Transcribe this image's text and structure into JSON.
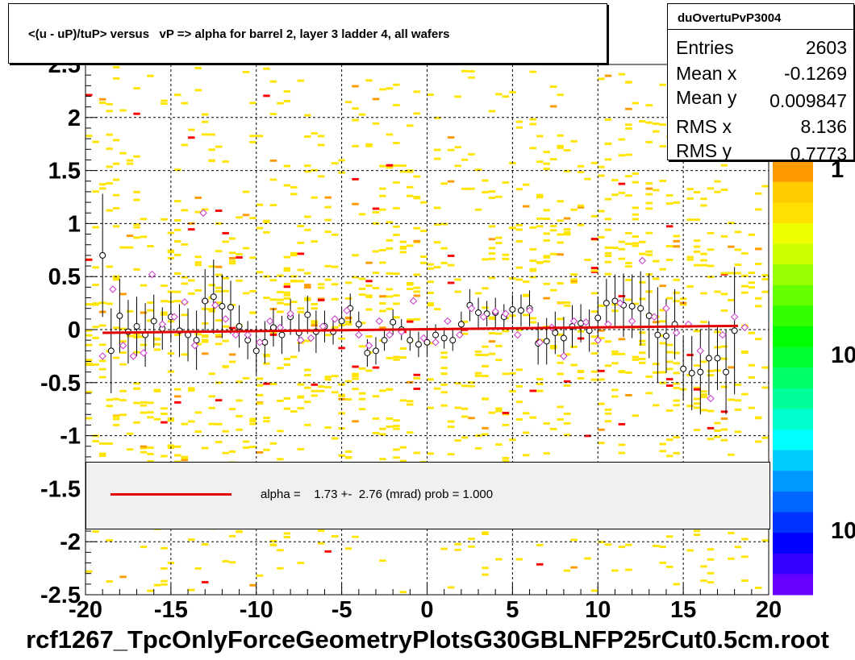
{
  "title": "<(u - uP)/tuP> versus   vP => alpha for barrel 2, layer 3 ladder 4, all wafers",
  "stats": {
    "name": "duOvertuPvP3004",
    "rows": [
      {
        "label": "Entries",
        "value": "2603"
      },
      {
        "label": "Mean x",
        "value": "-0.1269"
      },
      {
        "label": "Mean y",
        "value": "0.009847"
      },
      {
        "label": "RMS x",
        "value": "8.136"
      },
      {
        "label": "RMS y",
        "value": "0.7773"
      }
    ]
  },
  "legend": {
    "text": "alpha =    1.73 +-  2.76 (mrad) prob = 1.000",
    "color": "#e00000"
  },
  "footer": "rcf1267_TpcOnlyForceGeometryPlotsG30GBLNFP25rCut0.5cm.root",
  "colors": {
    "fit": "#e00000",
    "profile": "#000000",
    "marker_alt": "#cc33cc",
    "hist_low": "#ffe400",
    "hist_high": "#ff0000"
  },
  "colorbar": {
    "labels": [
      "1",
      "10",
      "10"
    ],
    "palette": [
      "#ff9900",
      "#ffcc00",
      "#ffe000",
      "#f0ff00",
      "#ccff00",
      "#99ff00",
      "#66ff00",
      "#33ff00",
      "#00ff00",
      "#00ff33",
      "#00ff66",
      "#00ff99",
      "#00ffcc",
      "#00ffff",
      "#00ccff",
      "#0099ff",
      "#0066ff",
      "#0033ff",
      "#0000ff",
      "#3300ff",
      "#6600ff"
    ]
  },
  "chart_data": {
    "type": "scatter",
    "title": "<(u - uP)/tuP> versus   vP => alpha for barrel 2, layer 3 ladder 4, all wafers",
    "xlim": [
      -20,
      20
    ],
    "ylim": [
      -2.5,
      2.5
    ],
    "x_ticks": [
      -20,
      -15,
      -10,
      -5,
      0,
      5,
      10,
      15,
      20
    ],
    "y_ticks": [
      -2.5,
      -2,
      -1.5,
      -1,
      -0.5,
      0,
      0.5,
      1,
      1.5,
      2,
      2.5
    ],
    "x_tick_labels": [
      "-20",
      "-15",
      "-10",
      "-5",
      "0",
      "5",
      "10",
      "15",
      "20"
    ],
    "y_tick_labels": [
      "-2.5",
      "-2",
      "-1.5",
      "-1",
      "-0.5",
      "0",
      "0.5",
      "1",
      "1.5",
      "2",
      "2.5"
    ],
    "grid": true,
    "fit": {
      "x": [
        -19,
        18.2
      ],
      "y": [
        -0.03,
        0.035
      ]
    },
    "profile_series": {
      "x": [
        -19,
        -18.5,
        -18,
        -17.5,
        -17,
        -16.5,
        -16,
        -15.5,
        -15,
        -14.5,
        -14,
        -13.5,
        -13,
        -12.5,
        -12,
        -11.5,
        -11,
        -10.5,
        -10,
        -9.5,
        -9,
        -8.5,
        -8,
        -7.5,
        -7,
        -6.5,
        -6,
        -5.5,
        -5,
        -4.5,
        -4,
        -3.5,
        -3,
        -2.5,
        -2,
        -1.5,
        -1,
        -0.5,
        0,
        0.5,
        1,
        1.5,
        2,
        2.5,
        3,
        3.5,
        4,
        4.5,
        5,
        5.5,
        6,
        6.5,
        7,
        7.5,
        8,
        8.5,
        9,
        9.5,
        10,
        10.5,
        11,
        11.5,
        12,
        12.5,
        13,
        13.5,
        14,
        14.5,
        15,
        15.5,
        16,
        16.5,
        17,
        17.5,
        18
      ],
      "y": [
        0.7,
        -0.2,
        0.13,
        -0.02,
        0.03,
        -0.05,
        0.08,
        0.01,
        0.12,
        -0.01,
        -0.05,
        -0.1,
        0.27,
        0.31,
        0.22,
        0.21,
        0.03,
        -0.1,
        -0.2,
        -0.12,
        0.02,
        -0.05,
        0.12,
        -0.03,
        0.14,
        -0.02,
        0.03,
        -0.02,
        0.08,
        0.2,
        0.05,
        -0.22,
        -0.2,
        -0.1,
        0.07,
        0.0,
        -0.1,
        -0.14,
        -0.12,
        -0.05,
        -0.08,
        -0.1,
        0.05,
        0.23,
        0.16,
        0.15,
        0.16,
        0.12,
        0.19,
        0.18,
        0.2,
        -0.13,
        -0.11,
        -0.03,
        -0.08,
        0.03,
        0.06,
        -0.01,
        0.11,
        0.25,
        0.27,
        0.23,
        0.22,
        0.2,
        0.13,
        -0.05,
        -0.06,
        0.05,
        -0.37,
        -0.41,
        -0.4,
        -0.27,
        -0.27,
        -0.4,
        -0.01
      ],
      "err": [
        0.58,
        0.4,
        0.35,
        0.3,
        0.28,
        0.3,
        0.25,
        0.2,
        0.22,
        0.25,
        0.25,
        0.28,
        0.3,
        0.35,
        0.3,
        0.25,
        0.2,
        0.18,
        0.22,
        0.2,
        0.18,
        0.18,
        0.17,
        0.18,
        0.18,
        0.2,
        0.15,
        0.12,
        0.12,
        0.14,
        0.12,
        0.13,
        0.13,
        0.1,
        0.12,
        0.1,
        0.1,
        0.12,
        0.13,
        0.1,
        0.1,
        0.1,
        0.12,
        0.15,
        0.14,
        0.12,
        0.14,
        0.12,
        0.14,
        0.15,
        0.17,
        0.2,
        0.22,
        0.2,
        0.2,
        0.2,
        0.18,
        0.2,
        0.2,
        0.23,
        0.25,
        0.3,
        0.3,
        0.35,
        0.4,
        0.45,
        0.35,
        0.33,
        0.3,
        0.35,
        0.4,
        0.35,
        0.3,
        0.4,
        0.6
      ]
    },
    "alt_series": {
      "x": [
        -19,
        -18.4,
        -17.8,
        -17.2,
        -16.6,
        -16.1,
        -15.5,
        -14.8,
        -14.2,
        -13.6,
        -13.1,
        -12.4,
        -11.8,
        -11.2,
        -10.5,
        -9.8,
        -9.2,
        -8.6,
        -8,
        -7.4,
        -6.8,
        -6.1,
        -5.4,
        -4.7,
        -4,
        -3.4,
        -2.8,
        -2.2,
        -1.5,
        -0.8,
        -0.2,
        0.5,
        1.2,
        1.9,
        2.6,
        3.3,
        4,
        4.6,
        5.3,
        6,
        6.6,
        7.3,
        8,
        8.6,
        9.3,
        10,
        10.6,
        11.3,
        12,
        12.6,
        13.3,
        14,
        14.6,
        15.3,
        16,
        16.6,
        17.3,
        18,
        18.6
      ],
      "y": [
        -0.25,
        0.38,
        -0.15,
        -0.25,
        -0.22,
        0.52,
        0.05,
        0.12,
        0.26,
        -0.15,
        1.1,
        0.23,
        0.1,
        -0.05,
        -0.05,
        -0.12,
        0.08,
        0.02,
        0.15,
        -0.1,
        -0.08,
        0.03,
        0.1,
        0.18,
        -0.05,
        -0.15,
        0.08,
        -0.05,
        -0.02,
        0.27,
        -0.08,
        -0.12,
        0.08,
        -0.05,
        0.2,
        0.12,
        0.17,
        0.15,
        -0.05,
        0.18,
        -0.12,
        0.02,
        -0.25,
        0.08,
        0.07,
        -0.1,
        0.05,
        0.25,
        0.08,
        0.65,
        0.12,
        0.2,
        -0.03,
        0.05,
        -0.2,
        -0.65,
        -0.05,
        0.12,
        0.02
      ]
    }
  }
}
